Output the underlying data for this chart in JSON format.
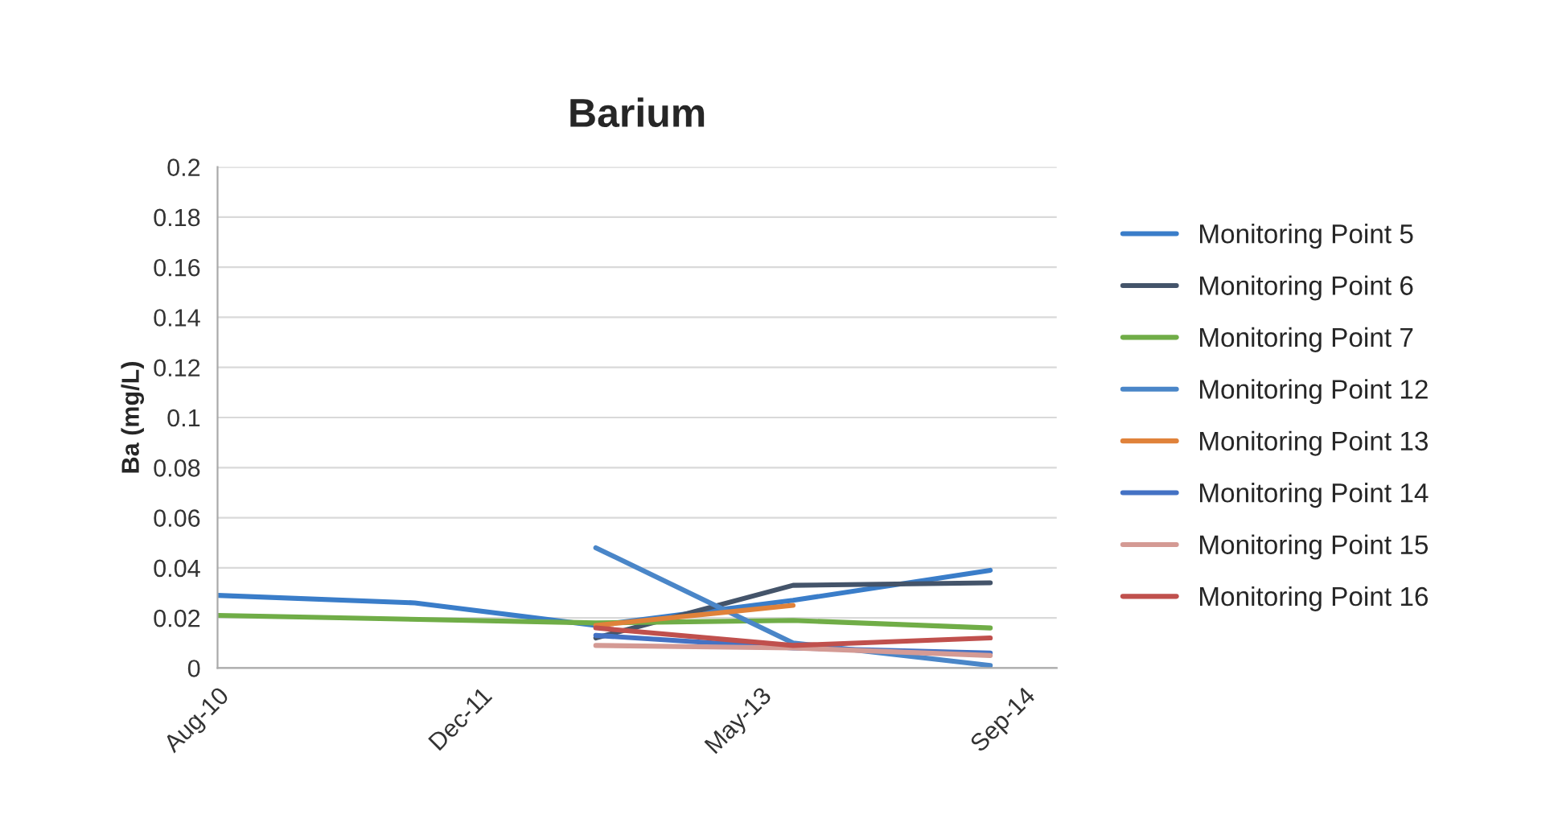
{
  "chart_data": {
    "type": "line",
    "title": "Barium",
    "ylabel": "Ba (mg/L)",
    "xlim": [
      "2010-08-01",
      "2014-11-01"
    ],
    "xticks": [
      {
        "value": "2010-08-01",
        "label": "Aug-10"
      },
      {
        "value": "2011-12-01",
        "label": "Dec-11"
      },
      {
        "value": "2013-05-01",
        "label": "May-13"
      },
      {
        "value": "2014-09-01",
        "label": "Sep-14"
      }
    ],
    "ylim": [
      0,
      0.2
    ],
    "yticks": [
      0,
      0.02,
      0.04,
      0.06,
      0.08,
      0.1,
      0.12,
      0.14,
      0.16,
      0.18,
      0.2
    ],
    "grid": "y",
    "legend": "right",
    "series": [
      {
        "name": "Monitoring Point 5",
        "color": "#3a7dc9",
        "x": [
          "2010-08-01",
          "2011-08-01",
          "2012-07-01",
          "2013-07-01",
          "2014-07-01"
        ],
        "values": [
          0.029,
          0.026,
          0.017,
          0.027,
          0.039
        ]
      },
      {
        "name": "Monitoring Point 6",
        "color": "#44546a",
        "x": [
          "2012-07-01",
          "2013-07-01",
          "2014-07-01"
        ],
        "values": [
          0.012,
          0.033,
          0.034
        ]
      },
      {
        "name": "Monitoring Point 7",
        "color": "#70ad47",
        "x": [
          "2010-08-01",
          "2012-07-01",
          "2013-07-01",
          "2014-07-01"
        ],
        "values": [
          0.021,
          0.018,
          0.019,
          0.016
        ]
      },
      {
        "name": "Monitoring Point 12",
        "color": "#4a86c8",
        "x": [
          "2012-07-01",
          "2013-07-01",
          "2014-07-01"
        ],
        "values": [
          0.048,
          0.01,
          0.001
        ]
      },
      {
        "name": "Monitoring Point 13",
        "color": "#e0823a",
        "x": [
          "2012-07-01",
          "2013-07-01"
        ],
        "values": [
          0.017,
          0.025
        ]
      },
      {
        "name": "Monitoring Point 14",
        "color": "#4472c4",
        "x": [
          "2012-07-01",
          "2013-07-01",
          "2014-07-01"
        ],
        "values": [
          0.013,
          0.008,
          0.006
        ]
      },
      {
        "name": "Monitoring Point 15",
        "color": "#d49a94",
        "x": [
          "2012-07-01",
          "2013-07-01",
          "2014-07-01"
        ],
        "values": [
          0.009,
          0.008,
          0.005
        ]
      },
      {
        "name": "Monitoring Point 16",
        "color": "#c0504d",
        "x": [
          "2012-07-01",
          "2013-07-01",
          "2014-07-01"
        ],
        "values": [
          0.016,
          0.009,
          0.012
        ]
      }
    ]
  }
}
